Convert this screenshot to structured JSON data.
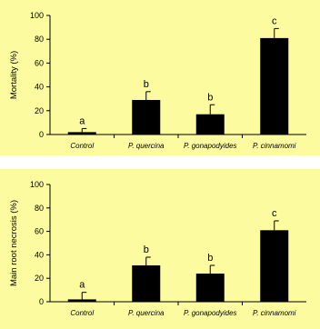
{
  "chart_data": [
    {
      "type": "bar",
      "categories": [
        "Control",
        "P. quercina",
        "P. gonapodyides",
        "P. cinnamomi"
      ],
      "values": [
        2,
        29,
        17,
        81
      ],
      "errors": [
        3,
        7,
        8,
        8
      ],
      "significance_letters": [
        "a",
        "b",
        "b",
        "c"
      ],
      "ylabel": "Mortality (%)",
      "xlabel": "",
      "ylim": [
        0,
        100
      ],
      "yticks": [
        0,
        20,
        40,
        60,
        80,
        100
      ],
      "bar_color": "#000000",
      "background": "#fdfba0",
      "grid": false
    },
    {
      "type": "bar",
      "categories": [
        "Control",
        "P. quercina",
        "P. gonapodyides",
        "P. cinnamomi"
      ],
      "values": [
        2,
        31,
        24,
        61
      ],
      "errors": [
        6,
        7,
        7,
        8
      ],
      "significance_letters": [
        "a",
        "b",
        "b",
        "c"
      ],
      "ylabel": "Main root necrosis (%)",
      "xlabel": "",
      "ylim": [
        0,
        100
      ],
      "yticks": [
        0,
        20,
        40,
        60,
        80,
        100
      ],
      "bar_color": "#000000",
      "background": "#fdfba0",
      "grid": false
    }
  ]
}
